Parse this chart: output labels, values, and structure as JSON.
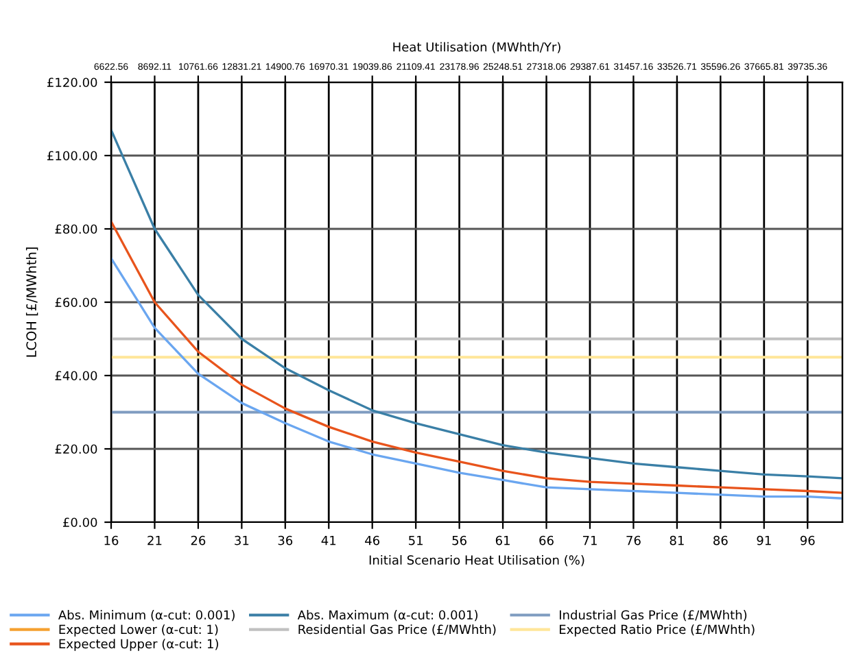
{
  "chart_data": {
    "type": "line",
    "xlabel": "Initial Scenario Heat Utilisation (%)",
    "ylabel": "LCOH [£/MWhth]",
    "x2label": "Heat Utilisation (MWhth/Yr)",
    "x": [
      16,
      21,
      26,
      31,
      36,
      41,
      46,
      51,
      56,
      61,
      66,
      71,
      76,
      81,
      86,
      91,
      96,
      100
    ],
    "series": [
      {
        "name": "Abs. Minimum (α-cut: 0.001)",
        "color": "#6aa6f0",
        "values": [
          72,
          53,
          40.5,
          32.5,
          27,
          22,
          18.5,
          16,
          13.5,
          11.5,
          9.5,
          9,
          8.5,
          8,
          7.5,
          7,
          7,
          6.5
        ]
      },
      {
        "name": "Abs. Maximum (α-cut: 0.001)",
        "color": "#3a7fa6",
        "values": [
          107,
          80,
          62,
          50,
          42,
          36,
          30.5,
          27,
          24,
          21,
          19,
          17.5,
          16,
          15,
          14,
          13,
          12.5,
          12
        ]
      },
      {
        "name": "Expected Lower (α-cut: 1)",
        "color": "#f5a030",
        "values": [
          null,
          null,
          null,
          null,
          null,
          null,
          null,
          null,
          null,
          null,
          null,
          null,
          null,
          null,
          null,
          null,
          null,
          null
        ]
      },
      {
        "name": "Expected Upper (α-cut: 1)",
        "color": "#e8541c",
        "values": [
          82,
          60,
          46.5,
          37.5,
          31,
          26,
          22,
          19,
          16.5,
          14,
          12,
          11,
          10.5,
          10,
          9.5,
          9,
          8.5,
          8
        ]
      }
    ],
    "ref_lines": [
      {
        "axis": "y",
        "value": 30,
        "label": "Industrial Gas Price (£/MWhth)",
        "color": "#7f9cc0"
      },
      {
        "axis": "y",
        "value": 50,
        "label": "Residential Gas Price (£/MWhth)",
        "color": "#c0c0c0"
      },
      {
        "axis": "y",
        "value": 45,
        "label": "Expected Ratio Price (£/MWhth)",
        "color": "#ffe699"
      }
    ],
    "xlim": [
      16,
      100
    ],
    "xticks": [
      16,
      21,
      26,
      31,
      36,
      41,
      46,
      51,
      56,
      61,
      66,
      71,
      76,
      81,
      86,
      91,
      96
    ],
    "ylim": [
      0,
      120
    ],
    "yticks": [
      {
        "value": 0,
        "label": "£0.00"
      },
      {
        "value": 20,
        "label": "£20.00"
      },
      {
        "value": 40,
        "label": "£40.00"
      },
      {
        "value": 60,
        "label": "£60.00"
      },
      {
        "value": 80,
        "label": "£80.00"
      },
      {
        "value": 100,
        "label": "£100.00"
      },
      {
        "value": 120,
        "label": "£120.00"
      }
    ],
    "x2lim": [
      6622.56,
      41391.0
    ],
    "x2ticks": [
      6622.56,
      8692.11,
      10761.66,
      12831.21,
      14900.76,
      16970.31,
      19039.86,
      21109.41,
      23178.96,
      25248.51,
      27318.06,
      29387.61,
      31457.16,
      33526.71,
      35596.26,
      37665.81,
      39735.36
    ],
    "grid": true,
    "legend": "bottom",
    "marker": "none",
    "line_style": "solid"
  }
}
